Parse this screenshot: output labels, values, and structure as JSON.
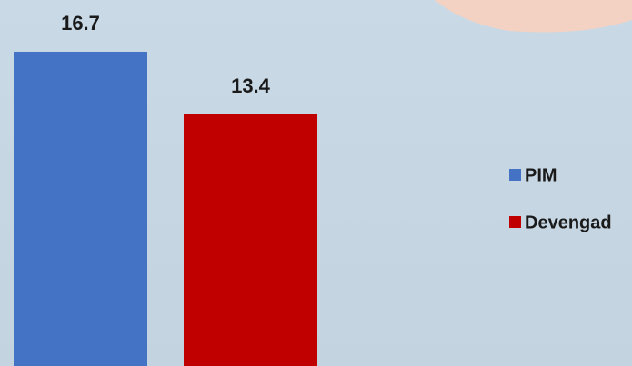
{
  "chart_data": {
    "type": "bar",
    "categories": [
      null
    ],
    "series": [
      {
        "name": "PIM",
        "color": "#4472c4",
        "values": [
          16.7
        ]
      },
      {
        "name": "Devengad",
        "color": "#c00000",
        "values": [
          13.4
        ]
      }
    ],
    "legend": "right"
  }
}
